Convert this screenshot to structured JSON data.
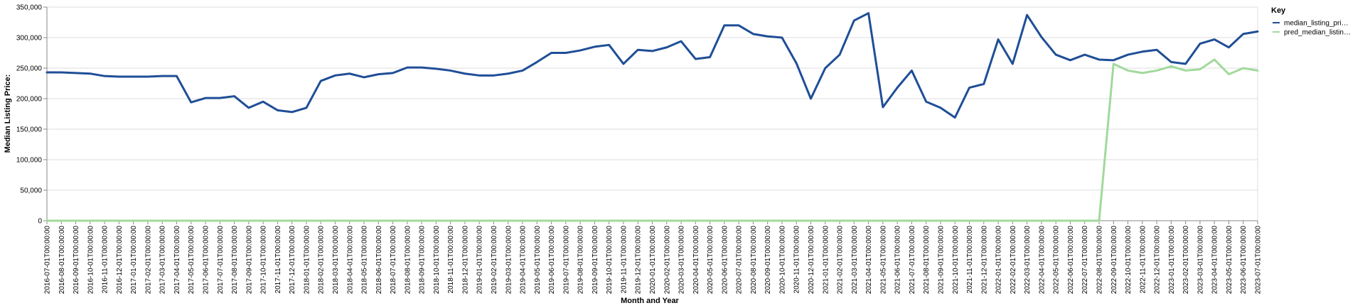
{
  "chart_data": {
    "type": "line",
    "xlabel": "Month and Year",
    "ylabel": "Median Listing Price:",
    "ylim": [
      0,
      350000
    ],
    "yticks": [
      0,
      50000,
      100000,
      150000,
      200000,
      250000,
      300000,
      350000
    ],
    "ytick_labels": [
      "0",
      "50,000",
      "100,000",
      "150,000",
      "200,000",
      "250,000",
      "300,000",
      "350,000"
    ],
    "grid": true,
    "legend": {
      "title": "Key",
      "position": "right"
    },
    "x": [
      "2016-07-01T00:00:00",
      "2016-08-01T00:00:00",
      "2016-09-01T00:00:00",
      "2016-10-01T00:00:00",
      "2016-11-01T00:00:00",
      "2016-12-01T00:00:00",
      "2017-01-01T00:00:00",
      "2017-02-01T00:00:00",
      "2017-03-01T00:00:00",
      "2017-04-01T00:00:00",
      "2017-05-01T00:00:00",
      "2017-06-01T00:00:00",
      "2017-07-01T00:00:00",
      "2017-08-01T00:00:00",
      "2017-09-01T00:00:00",
      "2017-10-01T00:00:00",
      "2017-11-01T00:00:00",
      "2017-12-01T00:00:00",
      "2018-01-01T00:00:00",
      "2018-02-01T00:00:00",
      "2018-03-01T00:00:00",
      "2018-04-01T00:00:00",
      "2018-05-01T00:00:00",
      "2018-06-01T00:00:00",
      "2018-07-01T00:00:00",
      "2018-08-01T00:00:00",
      "2018-09-01T00:00:00",
      "2018-10-01T00:00:00",
      "2018-11-01T00:00:00",
      "2018-12-01T00:00:00",
      "2019-01-01T00:00:00",
      "2019-02-01T00:00:00",
      "2019-03-01T00:00:00",
      "2019-04-01T00:00:00",
      "2019-05-01T00:00:00",
      "2019-06-01T00:00:00",
      "2019-07-01T00:00:00",
      "2019-08-01T00:00:00",
      "2019-09-01T00:00:00",
      "2019-10-01T00:00:00",
      "2019-11-01T00:00:00",
      "2019-12-01T00:00:00",
      "2020-01-01T00:00:00",
      "2020-02-01T00:00:00",
      "2020-03-01T00:00:00",
      "2020-04-01T00:00:00",
      "2020-05-01T00:00:00",
      "2020-06-01T00:00:00",
      "2020-07-01T00:00:00",
      "2020-08-01T00:00:00",
      "2020-09-01T00:00:00",
      "2020-10-01T00:00:00",
      "2020-11-01T00:00:00",
      "2020-12-01T00:00:00",
      "2021-01-01T00:00:00",
      "2021-02-01T00:00:00",
      "2021-03-01T00:00:00",
      "2021-04-01T00:00:00",
      "2021-05-01T00:00:00",
      "2021-06-01T00:00:00",
      "2021-07-01T00:00:00",
      "2021-08-01T00:00:00",
      "2021-09-01T00:00:00",
      "2021-10-01T00:00:00",
      "2021-11-01T00:00:00",
      "2021-12-01T00:00:00",
      "2022-01-01T00:00:00",
      "2022-02-01T00:00:00",
      "2022-03-01T00:00:00",
      "2022-04-01T00:00:00",
      "2022-05-01T00:00:00",
      "2022-06-01T00:00:00",
      "2022-07-01T00:00:00",
      "2022-08-01T00:00:00",
      "2022-09-01T00:00:00",
      "2022-10-01T00:00:00",
      "2022-11-01T00:00:00",
      "2022-12-01T00:00:00",
      "2023-01-01T00:00:00",
      "2023-02-01T00:00:00",
      "2023-03-01T00:00:00",
      "2023-04-01T00:00:00",
      "2023-05-01T00:00:00",
      "2023-06-01T00:00:00",
      "2023-07-01T00:00:00"
    ],
    "series": [
      {
        "name": "median_listing_pri…",
        "color": "#1f4e96",
        "values": [
          243000,
          243000,
          242000,
          241000,
          237000,
          236000,
          236000,
          236000,
          237000,
          237000,
          194000,
          201000,
          201000,
          204000,
          185000,
          195000,
          181000,
          178000,
          185000,
          229000,
          238000,
          241000,
          235000,
          240000,
          242000,
          251000,
          251000,
          249000,
          246000,
          241000,
          238000,
          238000,
          241000,
          246000,
          260000,
          275000,
          275000,
          279000,
          285000,
          288000,
          257000,
          280000,
          278000,
          284000,
          294000,
          265000,
          268000,
          320000,
          320000,
          306000,
          302000,
          300000,
          258000,
          200000,
          250000,
          272000,
          328000,
          340000,
          186000,
          218000,
          246000,
          195000,
          185000,
          169000,
          218000,
          224000,
          297000,
          257000,
          337000,
          301000,
          272000,
          263000,
          272000,
          264000,
          263000,
          272000,
          277000,
          280000,
          260000,
          257000,
          290000,
          297000,
          284000,
          306000,
          310000
        ]
      },
      {
        "name": "pred_median_listin…",
        "color": "#a1d99b",
        "values": [
          0,
          0,
          0,
          0,
          0,
          0,
          0,
          0,
          0,
          0,
          0,
          0,
          0,
          0,
          0,
          0,
          0,
          0,
          0,
          0,
          0,
          0,
          0,
          0,
          0,
          0,
          0,
          0,
          0,
          0,
          0,
          0,
          0,
          0,
          0,
          0,
          0,
          0,
          0,
          0,
          0,
          0,
          0,
          0,
          0,
          0,
          0,
          0,
          0,
          0,
          0,
          0,
          0,
          0,
          0,
          0,
          0,
          0,
          0,
          0,
          0,
          0,
          0,
          0,
          0,
          0,
          0,
          0,
          0,
          0,
          0,
          0,
          0,
          0,
          257000,
          246000,
          242000,
          246000,
          253000,
          246000,
          248000,
          264000,
          240000,
          250000,
          246000
        ]
      }
    ]
  }
}
